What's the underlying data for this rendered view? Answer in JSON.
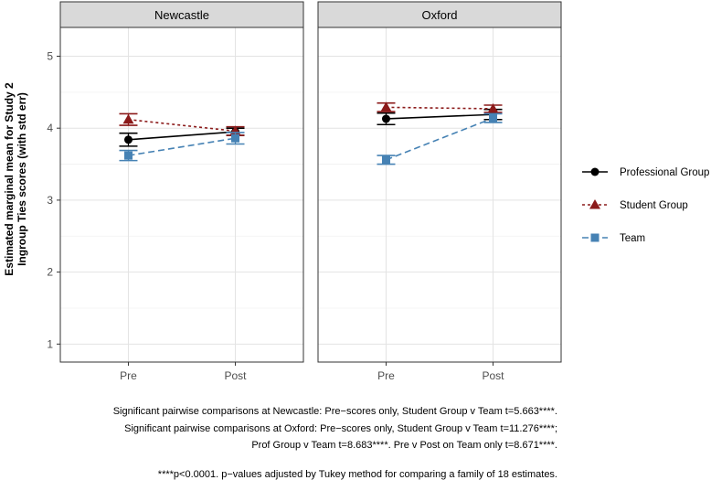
{
  "chart_data": {
    "type": "line",
    "ylabel_line1": "Estimated marginal mean for Study 2",
    "ylabel_line2": "Ingroup Ties scores (with std err)",
    "ylim": [
      0.75,
      5.4
    ],
    "yticks": [
      1,
      2,
      3,
      4,
      5
    ],
    "categories": [
      "Pre",
      "Post"
    ],
    "grid": true,
    "legend_placement": "right",
    "panels": [
      {
        "title": "Newcastle",
        "series": [
          {
            "name": "Professional Group",
            "values": [
              3.84,
              3.95
            ],
            "se": [
              0.09,
              0.05
            ]
          },
          {
            "name": "Student Group",
            "values": [
              4.12,
              3.96
            ],
            "se": [
              0.08,
              0.06
            ]
          },
          {
            "name": "Team",
            "values": [
              3.62,
              3.86
            ],
            "se": [
              0.07,
              0.08
            ]
          }
        ]
      },
      {
        "title": "Oxford",
        "series": [
          {
            "name": "Professional Group",
            "values": [
              4.13,
              4.19
            ],
            "se": [
              0.08,
              0.07
            ]
          },
          {
            "name": "Student Group",
            "values": [
              4.29,
              4.27
            ],
            "se": [
              0.06,
              0.05
            ]
          },
          {
            "name": "Team",
            "values": [
              3.56,
              4.14
            ],
            "se": [
              0.06,
              0.06
            ]
          }
        ]
      }
    ],
    "legend": [
      {
        "name": "Professional Group",
        "color": "#000000",
        "marker": "circle",
        "dash": "solid"
      },
      {
        "name": "Student Group",
        "color": "#8b1a1a",
        "marker": "triangle",
        "dash": "dotted"
      },
      {
        "name": "Team",
        "color": "#4682b4",
        "marker": "square",
        "dash": "dashed"
      }
    ]
  },
  "caption": {
    "line1": "Significant pairwise comparisons at Newcastle: Pre−scores only, Student Group v Team t=5.663****.",
    "line2": "Significant pairwise comparisons at Oxford: Pre−scores only, Student Group v Team t=11.276****;",
    "line3": "Prof Group v Team t=8.683****. Pre v Post on Team only t=8.671****.",
    "line4": "****p<0.0001. p−values adjusted by Tukey method for comparing a family of 18 estimates."
  }
}
